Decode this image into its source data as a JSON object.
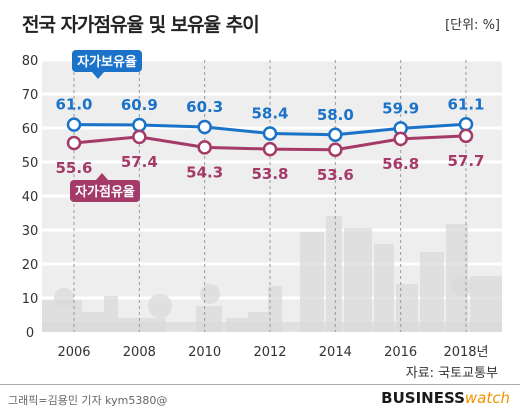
{
  "header": {
    "title": "전국 자가점유율 및 보유율 추이",
    "unit": "[단위: %]"
  },
  "footer": {
    "source": "자료: 국토교통부",
    "credit": "그래픽=김용민 기자 kym5380@",
    "brand_main": "BUSINESS",
    "brand_accent": "watch"
  },
  "chart_data": {
    "type": "line",
    "x": [
      2006,
      2008,
      2010,
      2012,
      2014,
      2016,
      2018
    ],
    "x_tick_labels": [
      "2006",
      "2008",
      "2010",
      "2012",
      "2014",
      "2016",
      "2018년"
    ],
    "ylim": [
      0,
      80
    ],
    "y_ticks": [
      0,
      10,
      20,
      30,
      40,
      50,
      60,
      70,
      80
    ],
    "grid": true,
    "series": [
      {
        "name": "자가보유율",
        "values": [
          61.0,
          60.9,
          60.3,
          58.4,
          58.0,
          59.9,
          61.1
        ],
        "labels": [
          "61.0",
          "60.9",
          "60.3",
          "58.4",
          "58.0",
          "59.9",
          "61.1"
        ],
        "color": "#1a73c8"
      },
      {
        "name": "자가점유율",
        "values": [
          55.6,
          57.4,
          54.3,
          53.8,
          53.6,
          56.8,
          57.7
        ],
        "labels": [
          "55.6",
          "57.4",
          "54.3",
          "53.8",
          "53.6",
          "56.8",
          "57.7"
        ],
        "color": "#a33a68"
      }
    ]
  },
  "colors": {
    "band": "#eeeeee",
    "skyline": "#d9d9d9",
    "grid": "#ffffff",
    "axis_text": "#333333"
  }
}
